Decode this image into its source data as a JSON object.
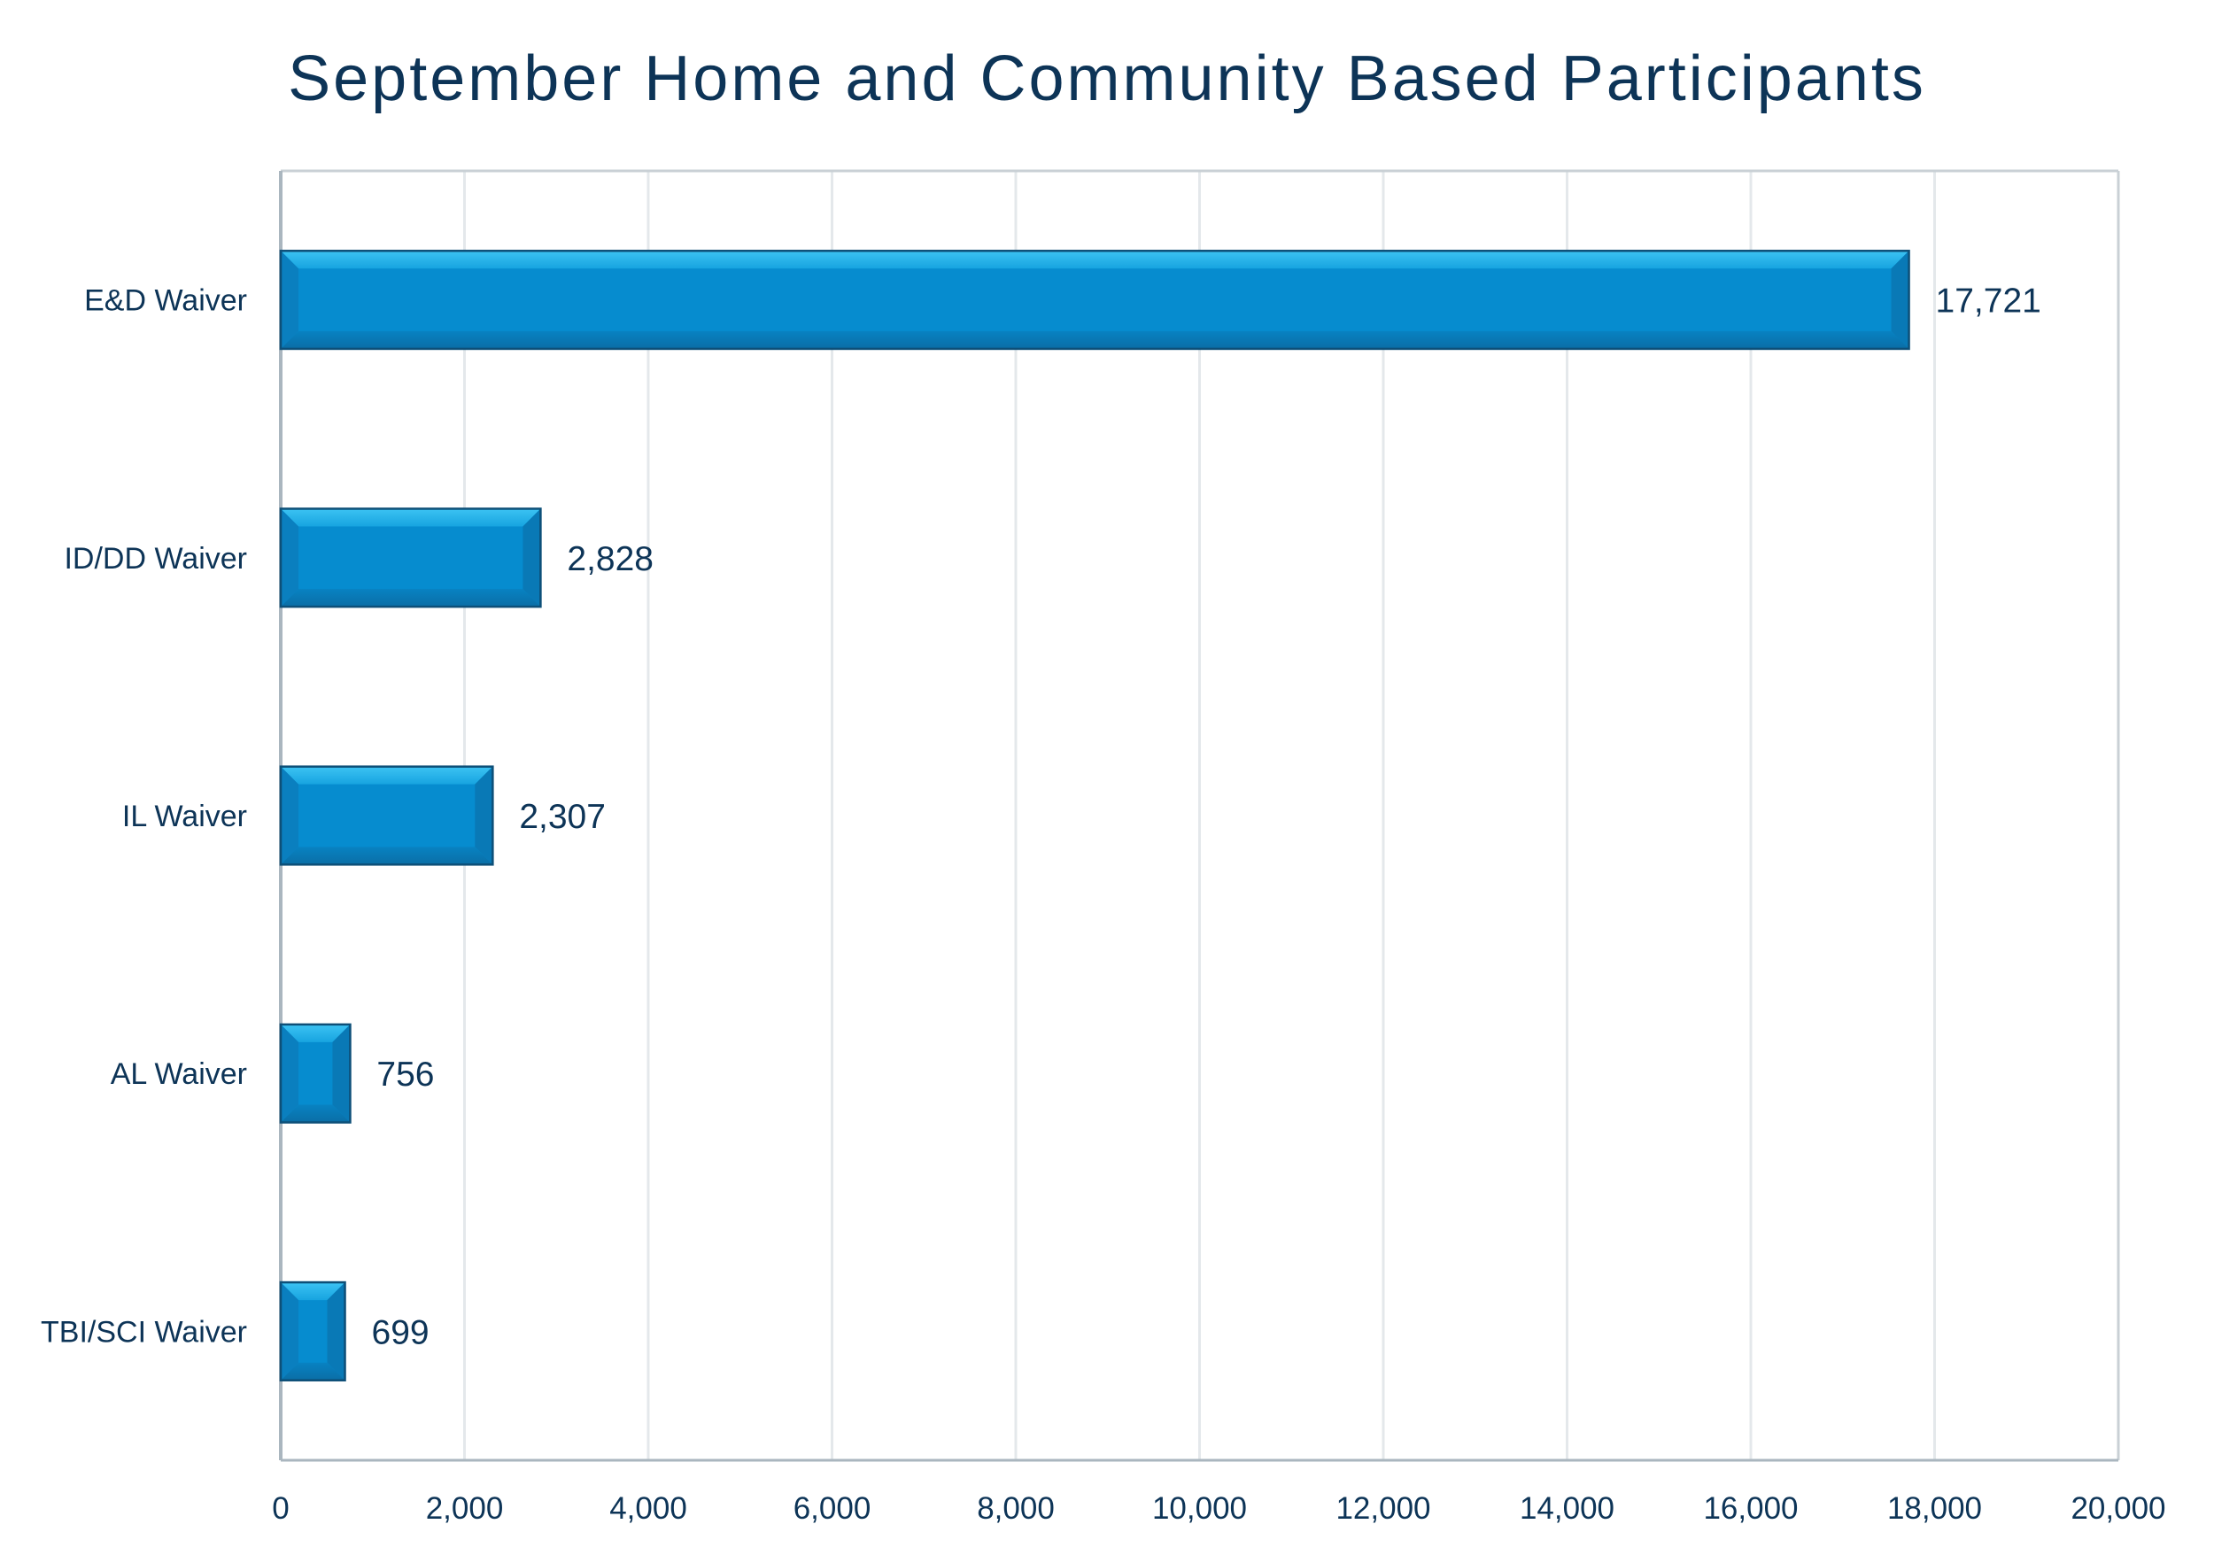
{
  "chart_data": {
    "type": "bar",
    "orientation": "horizontal",
    "title": "September Home and Community Based Participants",
    "xlabel": "",
    "ylabel": "",
    "categories": [
      "E&D Waiver",
      "ID/DD Waiver",
      "IL Waiver",
      "AL Waiver",
      "TBI/SCI Waiver"
    ],
    "values": [
      17721,
      2828,
      2307,
      756,
      699
    ],
    "data_labels": [
      "17,721",
      "2,828",
      "2,307",
      "756",
      "699"
    ],
    "xlim": [
      0,
      20000
    ],
    "x_ticks": [
      0,
      2000,
      4000,
      6000,
      8000,
      10000,
      12000,
      14000,
      16000,
      18000,
      20000
    ],
    "x_tick_labels": [
      "0",
      "2,000",
      "4,000",
      "6,000",
      "8,000",
      "10,000",
      "12,000",
      "14,000",
      "16,000",
      "18,000",
      "20,000"
    ],
    "grid": true,
    "legend": "none",
    "colors": {
      "bar_fill": "#068ccf",
      "bar_highlight": "#3cc3f3",
      "bar_shadow": "#0a6ea6",
      "bar_outline": "#0d4f78",
      "text": "#0d3457",
      "gridline": "#e4e8eb",
      "axis": "#aab6bf"
    }
  }
}
